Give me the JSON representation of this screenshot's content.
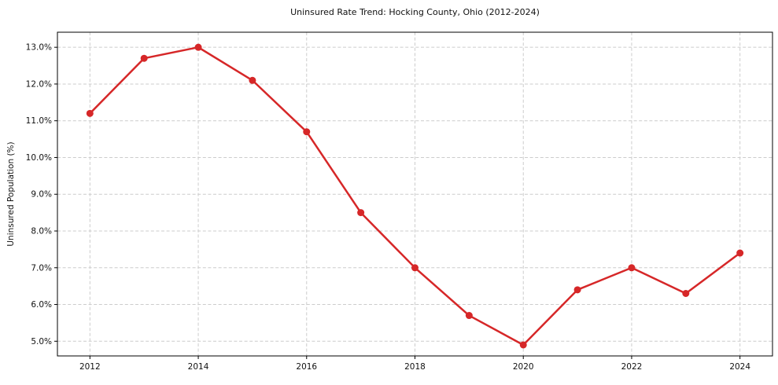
{
  "chart_data": {
    "type": "line",
    "title": "Uninsured Rate Trend: Hocking County, Ohio (2012-2024)",
    "xlabel": "",
    "ylabel": "Uninsured Population (%)",
    "x": [
      2012,
      2013,
      2014,
      2015,
      2016,
      2017,
      2018,
      2019,
      2020,
      2021,
      2022,
      2023,
      2024
    ],
    "values": [
      11.2,
      12.7,
      13.0,
      12.1,
      10.7,
      8.5,
      7.0,
      5.7,
      4.9,
      6.4,
      7.0,
      6.3,
      7.4
    ],
    "xticks": [
      2012,
      2014,
      2016,
      2018,
      2020,
      2022,
      2024
    ],
    "xtick_labels": [
      "2012",
      "2014",
      "2016",
      "2018",
      "2020",
      "2022",
      "2024"
    ],
    "yticks": [
      5.0,
      6.0,
      7.0,
      8.0,
      9.0,
      10.0,
      11.0,
      12.0,
      13.0
    ],
    "ytick_labels": [
      "5.0%",
      "6.0%",
      "7.0%",
      "8.0%",
      "9.0%",
      "10.0%",
      "11.0%",
      "12.0%",
      "13.0%"
    ],
    "xlim": [
      2011.4,
      2024.6
    ],
    "ylim": [
      4.6,
      13.41
    ],
    "grid": true,
    "legend": "none",
    "line_color": "#d62728",
    "marker_color": "#d62728",
    "grid_color": "#cccccc",
    "spine_color": "#000000",
    "background_color": "#ffffff"
  }
}
